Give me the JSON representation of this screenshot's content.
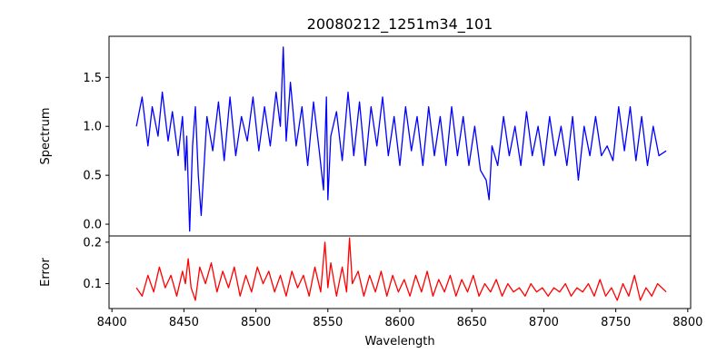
{
  "chart_data": [
    {
      "type": "line",
      "title": "20080212_1251m34_101",
      "xlabel": "",
      "ylabel": "Spectrum",
      "xlim": [
        8398,
        8802
      ],
      "ylim": [
        -0.12,
        1.92
      ],
      "x_ticks": [],
      "y_ticks": [
        0.0,
        0.5,
        1.0,
        1.5
      ],
      "y_tick_labels": [
        "0.0",
        "0.5",
        "1.0",
        "1.5"
      ],
      "grid": false,
      "color": "#0000ff",
      "series": [
        {
          "x": [
            8417,
            8421,
            8425,
            8428,
            8432,
            8435,
            8439,
            8442,
            8446,
            8449,
            8451,
            8452,
            8454,
            8456,
            8458,
            8460,
            8462,
            8466,
            8470,
            8474,
            8478,
            8482,
            8486,
            8490,
            8494,
            8498,
            8502,
            8506,
            8510,
            8514,
            8517,
            8519,
            8521,
            8524,
            8528,
            8532,
            8536,
            8540,
            8544,
            8547,
            8549,
            8550,
            8552,
            8556,
            8560,
            8564,
            8568,
            8572,
            8576,
            8580,
            8584,
            8588,
            8592,
            8596,
            8600,
            8604,
            8608,
            8612,
            8616,
            8620,
            8624,
            8628,
            8632,
            8636,
            8640,
            8644,
            8648,
            8652,
            8656,
            8660,
            8662,
            8664,
            8668,
            8672,
            8676,
            8680,
            8684,
            8688,
            8692,
            8696,
            8700,
            8704,
            8708,
            8712,
            8716,
            8720,
            8724,
            8728,
            8732,
            8736,
            8740,
            8744,
            8748,
            8752,
            8756,
            8760,
            8764,
            8768,
            8772,
            8776,
            8780,
            8785
          ],
          "values": [
            1.0,
            1.3,
            0.8,
            1.2,
            0.9,
            1.35,
            0.85,
            1.15,
            0.7,
            1.1,
            0.55,
            0.9,
            -0.07,
            0.8,
            1.2,
            0.5,
            0.09,
            1.1,
            0.75,
            1.25,
            0.65,
            1.3,
            0.7,
            1.1,
            0.85,
            1.3,
            0.75,
            1.2,
            0.8,
            1.35,
            1.0,
            1.81,
            0.85,
            1.45,
            0.8,
            1.2,
            0.6,
            1.25,
            0.75,
            0.35,
            1.3,
            0.25,
            0.9,
            1.15,
            0.65,
            1.35,
            0.7,
            1.25,
            0.6,
            1.2,
            0.8,
            1.3,
            0.7,
            1.1,
            0.6,
            1.2,
            0.75,
            1.1,
            0.6,
            1.2,
            0.7,
            1.1,
            0.6,
            1.2,
            0.7,
            1.1,
            0.6,
            1.0,
            0.55,
            0.45,
            0.25,
            0.8,
            0.6,
            1.1,
            0.7,
            1.0,
            0.6,
            1.15,
            0.7,
            1.0,
            0.6,
            1.1,
            0.7,
            1.0,
            0.6,
            1.1,
            0.45,
            1.0,
            0.7,
            1.1,
            0.7,
            0.8,
            0.65,
            1.2,
            0.75,
            1.2,
            0.65,
            1.1,
            0.6,
            1.0,
            0.7,
            0.75
          ]
        }
      ]
    },
    {
      "type": "line",
      "title": "",
      "xlabel": "Wavelength",
      "ylabel": "Error",
      "xlim": [
        8398,
        8802
      ],
      "ylim": [
        0.04,
        0.215
      ],
      "x_ticks": [
        8400,
        8450,
        8500,
        8550,
        8600,
        8650,
        8700,
        8750,
        8800
      ],
      "x_tick_labels": [
        "8400",
        "8450",
        "8500",
        "8550",
        "8600",
        "8650",
        "8700",
        "8750",
        "8800"
      ],
      "y_ticks": [
        0.1,
        0.2
      ],
      "y_tick_labels": [
        "0.1",
        "0.2"
      ],
      "grid": false,
      "color": "#ff0000",
      "series": [
        {
          "x": [
            8417,
            8421,
            8425,
            8429,
            8433,
            8437,
            8441,
            8445,
            8449,
            8451,
            8453,
            8455,
            8458,
            8461,
            8465,
            8469,
            8473,
            8477,
            8481,
            8485,
            8489,
            8493,
            8497,
            8501,
            8505,
            8509,
            8513,
            8517,
            8521,
            8525,
            8529,
            8533,
            8537,
            8541,
            8545,
            8548,
            8550,
            8552,
            8556,
            8560,
            8563,
            8565,
            8567,
            8571,
            8575,
            8579,
            8583,
            8587,
            8591,
            8595,
            8599,
            8603,
            8607,
            8611,
            8615,
            8619,
            8623,
            8627,
            8631,
            8635,
            8639,
            8643,
            8647,
            8651,
            8655,
            8659,
            8663,
            8667,
            8671,
            8675,
            8679,
            8683,
            8687,
            8691,
            8695,
            8699,
            8703,
            8707,
            8711,
            8715,
            8719,
            8723,
            8727,
            8731,
            8735,
            8739,
            8743,
            8747,
            8751,
            8755,
            8759,
            8763,
            8767,
            8771,
            8775,
            8779,
            8785
          ],
          "values": [
            0.09,
            0.07,
            0.12,
            0.08,
            0.14,
            0.09,
            0.12,
            0.07,
            0.13,
            0.1,
            0.16,
            0.09,
            0.06,
            0.14,
            0.1,
            0.15,
            0.08,
            0.13,
            0.09,
            0.14,
            0.07,
            0.12,
            0.08,
            0.14,
            0.1,
            0.13,
            0.08,
            0.12,
            0.07,
            0.13,
            0.09,
            0.12,
            0.07,
            0.14,
            0.08,
            0.2,
            0.09,
            0.15,
            0.07,
            0.14,
            0.08,
            0.21,
            0.1,
            0.13,
            0.07,
            0.12,
            0.08,
            0.13,
            0.07,
            0.12,
            0.08,
            0.11,
            0.07,
            0.12,
            0.08,
            0.13,
            0.07,
            0.11,
            0.08,
            0.12,
            0.07,
            0.11,
            0.08,
            0.12,
            0.07,
            0.1,
            0.08,
            0.11,
            0.07,
            0.1,
            0.08,
            0.09,
            0.07,
            0.1,
            0.08,
            0.09,
            0.07,
            0.09,
            0.08,
            0.1,
            0.07,
            0.09,
            0.08,
            0.1,
            0.07,
            0.11,
            0.07,
            0.09,
            0.06,
            0.1,
            0.07,
            0.12,
            0.06,
            0.09,
            0.07,
            0.1,
            0.08
          ]
        }
      ]
    }
  ]
}
